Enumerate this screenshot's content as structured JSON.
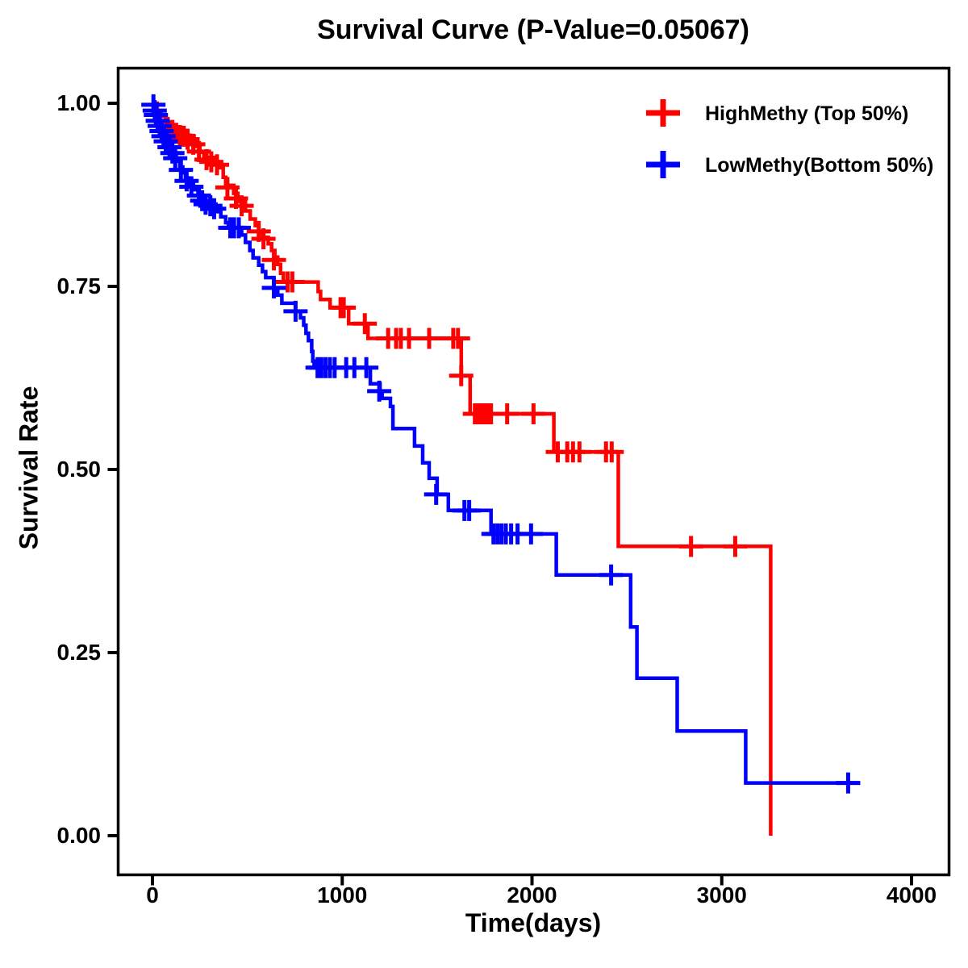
{
  "title": "Survival Curve (P-Value=0.05067)",
  "p_value": "0.05067",
  "x_axis": {
    "label": "Time(days)",
    "tick_labels": [
      "0",
      "1000",
      "2000",
      "3000",
      "4000"
    ],
    "tick_values": [
      0,
      1000,
      2000,
      3000,
      4000
    ],
    "range": [
      0,
      4000
    ]
  },
  "y_axis": {
    "label": "Survival Rate",
    "tick_labels": [
      "1.00",
      "0.75",
      "0.50",
      "0.25",
      "0.00"
    ],
    "tick_values": [
      1.0,
      0.75,
      0.5,
      0.25,
      0.0
    ],
    "range": [
      0.0,
      1.0
    ]
  },
  "legend": [
    {
      "name": "HighMethy (Top 50%)",
      "color": "#ff0000",
      "marker": "plus-icon"
    },
    {
      "name": "LowMethy(Bottom 50%)",
      "color": "#0000ff",
      "marker": "plus-icon"
    }
  ],
  "chart_data": {
    "type": "line",
    "subtype": "kaplan-meier-step",
    "title": "Survival Curve (P-Value=0.05067)",
    "xlabel": "Time(days)",
    "ylabel": "Survival Rate",
    "xlim": [
      0,
      4000
    ],
    "ylim": [
      0.0,
      1.0
    ],
    "grid": false,
    "legend_position": "top-right-inside",
    "series": [
      {
        "name": "HighMethy (Top 50%)",
        "color": "#ff0000",
        "steps": [
          [
            0,
            1.0
          ],
          [
            25,
            0.99
          ],
          [
            45,
            0.982
          ],
          [
            70,
            0.974
          ],
          [
            95,
            0.966
          ],
          [
            130,
            0.96
          ],
          [
            170,
            0.955
          ],
          [
            205,
            0.948
          ],
          [
            230,
            0.941
          ],
          [
            250,
            0.933
          ],
          [
            271,
            0.926
          ],
          [
            330,
            0.918
          ],
          [
            356,
            0.912
          ],
          [
            373,
            0.899
          ],
          [
            386,
            0.888
          ],
          [
            428,
            0.877
          ],
          [
            450,
            0.866
          ],
          [
            490,
            0.853
          ],
          [
            515,
            0.842
          ],
          [
            542,
            0.833
          ],
          [
            560,
            0.825
          ],
          [
            580,
            0.817
          ],
          [
            610,
            0.808
          ],
          [
            628,
            0.799
          ],
          [
            645,
            0.79
          ],
          [
            660,
            0.78
          ],
          [
            675,
            0.768
          ],
          [
            690,
            0.756
          ],
          [
            873,
            0.743
          ],
          [
            886,
            0.732
          ],
          [
            936,
            0.721
          ],
          [
            1034,
            0.699
          ],
          [
            1136,
            0.679
          ],
          [
            1627,
            0.628
          ],
          [
            1674,
            0.576
          ],
          [
            2115,
            0.524
          ],
          [
            2455,
            0.395
          ],
          [
            3258,
            0.395
          ],
          [
            3258,
            0.0
          ]
        ],
        "censors": [
          [
            80,
            0.967
          ],
          [
            105,
            0.963
          ],
          [
            125,
            0.959
          ],
          [
            145,
            0.956
          ],
          [
            165,
            0.955
          ],
          [
            185,
            0.951
          ],
          [
            215,
            0.944
          ],
          [
            245,
            0.934
          ],
          [
            285,
            0.923
          ],
          [
            310,
            0.92
          ],
          [
            340,
            0.916
          ],
          [
            395,
            0.885
          ],
          [
            440,
            0.87
          ],
          [
            470,
            0.86
          ],
          [
            560,
            0.825
          ],
          [
            585,
            0.815
          ],
          [
            640,
            0.786
          ],
          [
            712,
            0.756
          ],
          [
            737,
            0.756
          ],
          [
            991,
            0.721
          ],
          [
            1008,
            0.721
          ],
          [
            1119,
            0.699
          ],
          [
            1242,
            0.679
          ],
          [
            1284,
            0.679
          ],
          [
            1309,
            0.679
          ],
          [
            1352,
            0.679
          ],
          [
            1458,
            0.679
          ],
          [
            1585,
            0.679
          ],
          [
            1610,
            0.679
          ],
          [
            1627,
            0.628
          ],
          [
            1699,
            0.576
          ],
          [
            1716,
            0.576
          ],
          [
            1733,
            0.576
          ],
          [
            1750,
            0.576
          ],
          [
            1767,
            0.576
          ],
          [
            1784,
            0.576
          ],
          [
            1869,
            0.576
          ],
          [
            2008,
            0.576
          ],
          [
            2136,
            0.524
          ],
          [
            2186,
            0.524
          ],
          [
            2216,
            0.524
          ],
          [
            2250,
            0.524
          ],
          [
            2390,
            0.524
          ],
          [
            2420,
            0.524
          ],
          [
            2838,
            0.395
          ],
          [
            3071,
            0.395
          ]
        ]
      },
      {
        "name": "LowMethy(Bottom 50%)",
        "color": "#0000ff",
        "steps": [
          [
            0,
            1.0
          ],
          [
            10,
            0.993
          ],
          [
            20,
            0.986
          ],
          [
            30,
            0.979
          ],
          [
            40,
            0.972
          ],
          [
            50,
            0.965
          ],
          [
            62,
            0.958
          ],
          [
            76,
            0.951
          ],
          [
            85,
            0.944
          ],
          [
            95,
            0.936
          ],
          [
            110,
            0.929
          ],
          [
            125,
            0.921
          ],
          [
            144,
            0.913
          ],
          [
            160,
            0.905
          ],
          [
            174,
            0.898
          ],
          [
            190,
            0.89
          ],
          [
            216,
            0.882
          ],
          [
            240,
            0.874
          ],
          [
            258,
            0.867
          ],
          [
            300,
            0.86
          ],
          [
            343,
            0.852
          ],
          [
            360,
            0.845
          ],
          [
            386,
            0.837
          ],
          [
            400,
            0.83
          ],
          [
            470,
            0.82
          ],
          [
            490,
            0.81
          ],
          [
            513,
            0.799
          ],
          [
            530,
            0.789
          ],
          [
            560,
            0.779
          ],
          [
            580,
            0.77
          ],
          [
            597,
            0.762
          ],
          [
            640,
            0.748
          ],
          [
            660,
            0.738
          ],
          [
            682,
            0.727
          ],
          [
            754,
            0.716
          ],
          [
            780,
            0.707
          ],
          [
            797,
            0.697
          ],
          [
            809,
            0.686
          ],
          [
            822,
            0.676
          ],
          [
            839,
            0.661
          ],
          [
            845,
            0.648
          ],
          [
            852,
            0.639
          ],
          [
            1148,
            0.617
          ],
          [
            1199,
            0.607
          ],
          [
            1210,
            0.597
          ],
          [
            1254,
            0.586
          ],
          [
            1267,
            0.556
          ],
          [
            1381,
            0.532
          ],
          [
            1424,
            0.509
          ],
          [
            1458,
            0.488
          ],
          [
            1500,
            0.466
          ],
          [
            1559,
            0.444
          ],
          [
            1784,
            0.412
          ],
          [
            2128,
            0.356
          ],
          [
            2520,
            0.285
          ],
          [
            2553,
            0.215
          ],
          [
            2765,
            0.143
          ],
          [
            3126,
            0.072
          ],
          [
            3722,
            0.072
          ]
        ],
        "censors": [
          [
            5,
            0.998
          ],
          [
            12,
            0.99
          ],
          [
            18,
            0.984
          ],
          [
            28,
            0.976
          ],
          [
            38,
            0.969
          ],
          [
            48,
            0.962
          ],
          [
            58,
            0.955
          ],
          [
            70,
            0.948
          ],
          [
            90,
            0.94
          ],
          [
            105,
            0.932
          ],
          [
            120,
            0.925
          ],
          [
            150,
            0.909
          ],
          [
            180,
            0.894
          ],
          [
            205,
            0.886
          ],
          [
            245,
            0.874
          ],
          [
            262,
            0.867
          ],
          [
            280,
            0.862
          ],
          [
            305,
            0.86
          ],
          [
            325,
            0.856
          ],
          [
            410,
            0.83
          ],
          [
            430,
            0.83
          ],
          [
            455,
            0.83
          ],
          [
            640,
            0.748
          ],
          [
            754,
            0.716
          ],
          [
            870,
            0.639
          ],
          [
            890,
            0.639
          ],
          [
            912,
            0.639
          ],
          [
            935,
            0.639
          ],
          [
            960,
            0.639
          ],
          [
            1021,
            0.639
          ],
          [
            1064,
            0.639
          ],
          [
            1127,
            0.639
          ],
          [
            1195,
            0.607
          ],
          [
            1495,
            0.466
          ],
          [
            1644,
            0.444
          ],
          [
            1669,
            0.444
          ],
          [
            1797,
            0.412
          ],
          [
            1818,
            0.412
          ],
          [
            1839,
            0.412
          ],
          [
            1862,
            0.412
          ],
          [
            1890,
            0.412
          ],
          [
            1924,
            0.412
          ],
          [
            1995,
            0.412
          ],
          [
            2417,
            0.356
          ],
          [
            3666,
            0.072
          ]
        ]
      }
    ]
  }
}
